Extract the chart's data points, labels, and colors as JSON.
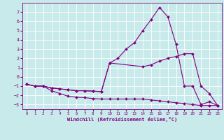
{
  "bg_color": "#c8eaea",
  "grid_color": "#aed4d4",
  "line_color": "#800080",
  "marker_color": "#800080",
  "xlabel": "Windchill (Refroidissement éolien,°C)",
  "xlim": [
    -0.5,
    23.5
  ],
  "ylim": [
    -3.5,
    8.0
  ],
  "yticks": [
    -3,
    -2,
    -1,
    0,
    1,
    2,
    3,
    4,
    5,
    6,
    7
  ],
  "xticks": [
    0,
    1,
    2,
    3,
    4,
    5,
    6,
    7,
    8,
    9,
    10,
    11,
    12,
    13,
    14,
    15,
    16,
    17,
    18,
    19,
    20,
    21,
    22,
    23
  ],
  "line1_x": [
    0,
    1,
    2,
    3,
    4,
    5,
    6,
    7,
    8,
    9,
    10,
    11,
    12,
    13,
    14,
    15,
    16,
    17,
    18,
    19,
    20,
    21,
    22,
    23
  ],
  "line1_y": [
    -0.8,
    -1.0,
    -1.0,
    -1.5,
    -1.8,
    -2.1,
    -2.2,
    -2.25,
    -2.35,
    -2.4,
    -2.4,
    -2.4,
    -2.4,
    -2.4,
    -2.4,
    -2.5,
    -2.6,
    -2.7,
    -2.8,
    -2.9,
    -3.0,
    -3.1,
    -3.1,
    -3.1
  ],
  "line2_x": [
    0,
    1,
    2,
    3,
    4,
    5,
    6,
    7,
    8,
    9,
    10,
    14,
    15,
    16,
    17,
    18,
    19,
    20,
    21,
    22,
    23
  ],
  "line2_y": [
    -0.8,
    -1.0,
    -1.0,
    -1.2,
    -1.3,
    -1.4,
    -1.5,
    -1.5,
    -1.55,
    -1.6,
    1.5,
    1.1,
    1.3,
    1.7,
    2.0,
    2.2,
    2.5,
    2.5,
    -1.0,
    -1.8,
    -3.1
  ],
  "line3_x": [
    0,
    1,
    2,
    3,
    4,
    5,
    6,
    7,
    8,
    9,
    10,
    11,
    12,
    13,
    14,
    15,
    16,
    17,
    18,
    19,
    20,
    21,
    22,
    23
  ],
  "line3_y": [
    -0.8,
    -1.0,
    -1.0,
    -1.2,
    -1.3,
    -1.4,
    -1.5,
    -1.5,
    -1.55,
    -1.6,
    1.5,
    2.0,
    3.0,
    3.7,
    5.0,
    6.2,
    7.5,
    6.5,
    3.5,
    -1.0,
    -1.0,
    -3.0,
    -2.7,
    -3.1
  ]
}
